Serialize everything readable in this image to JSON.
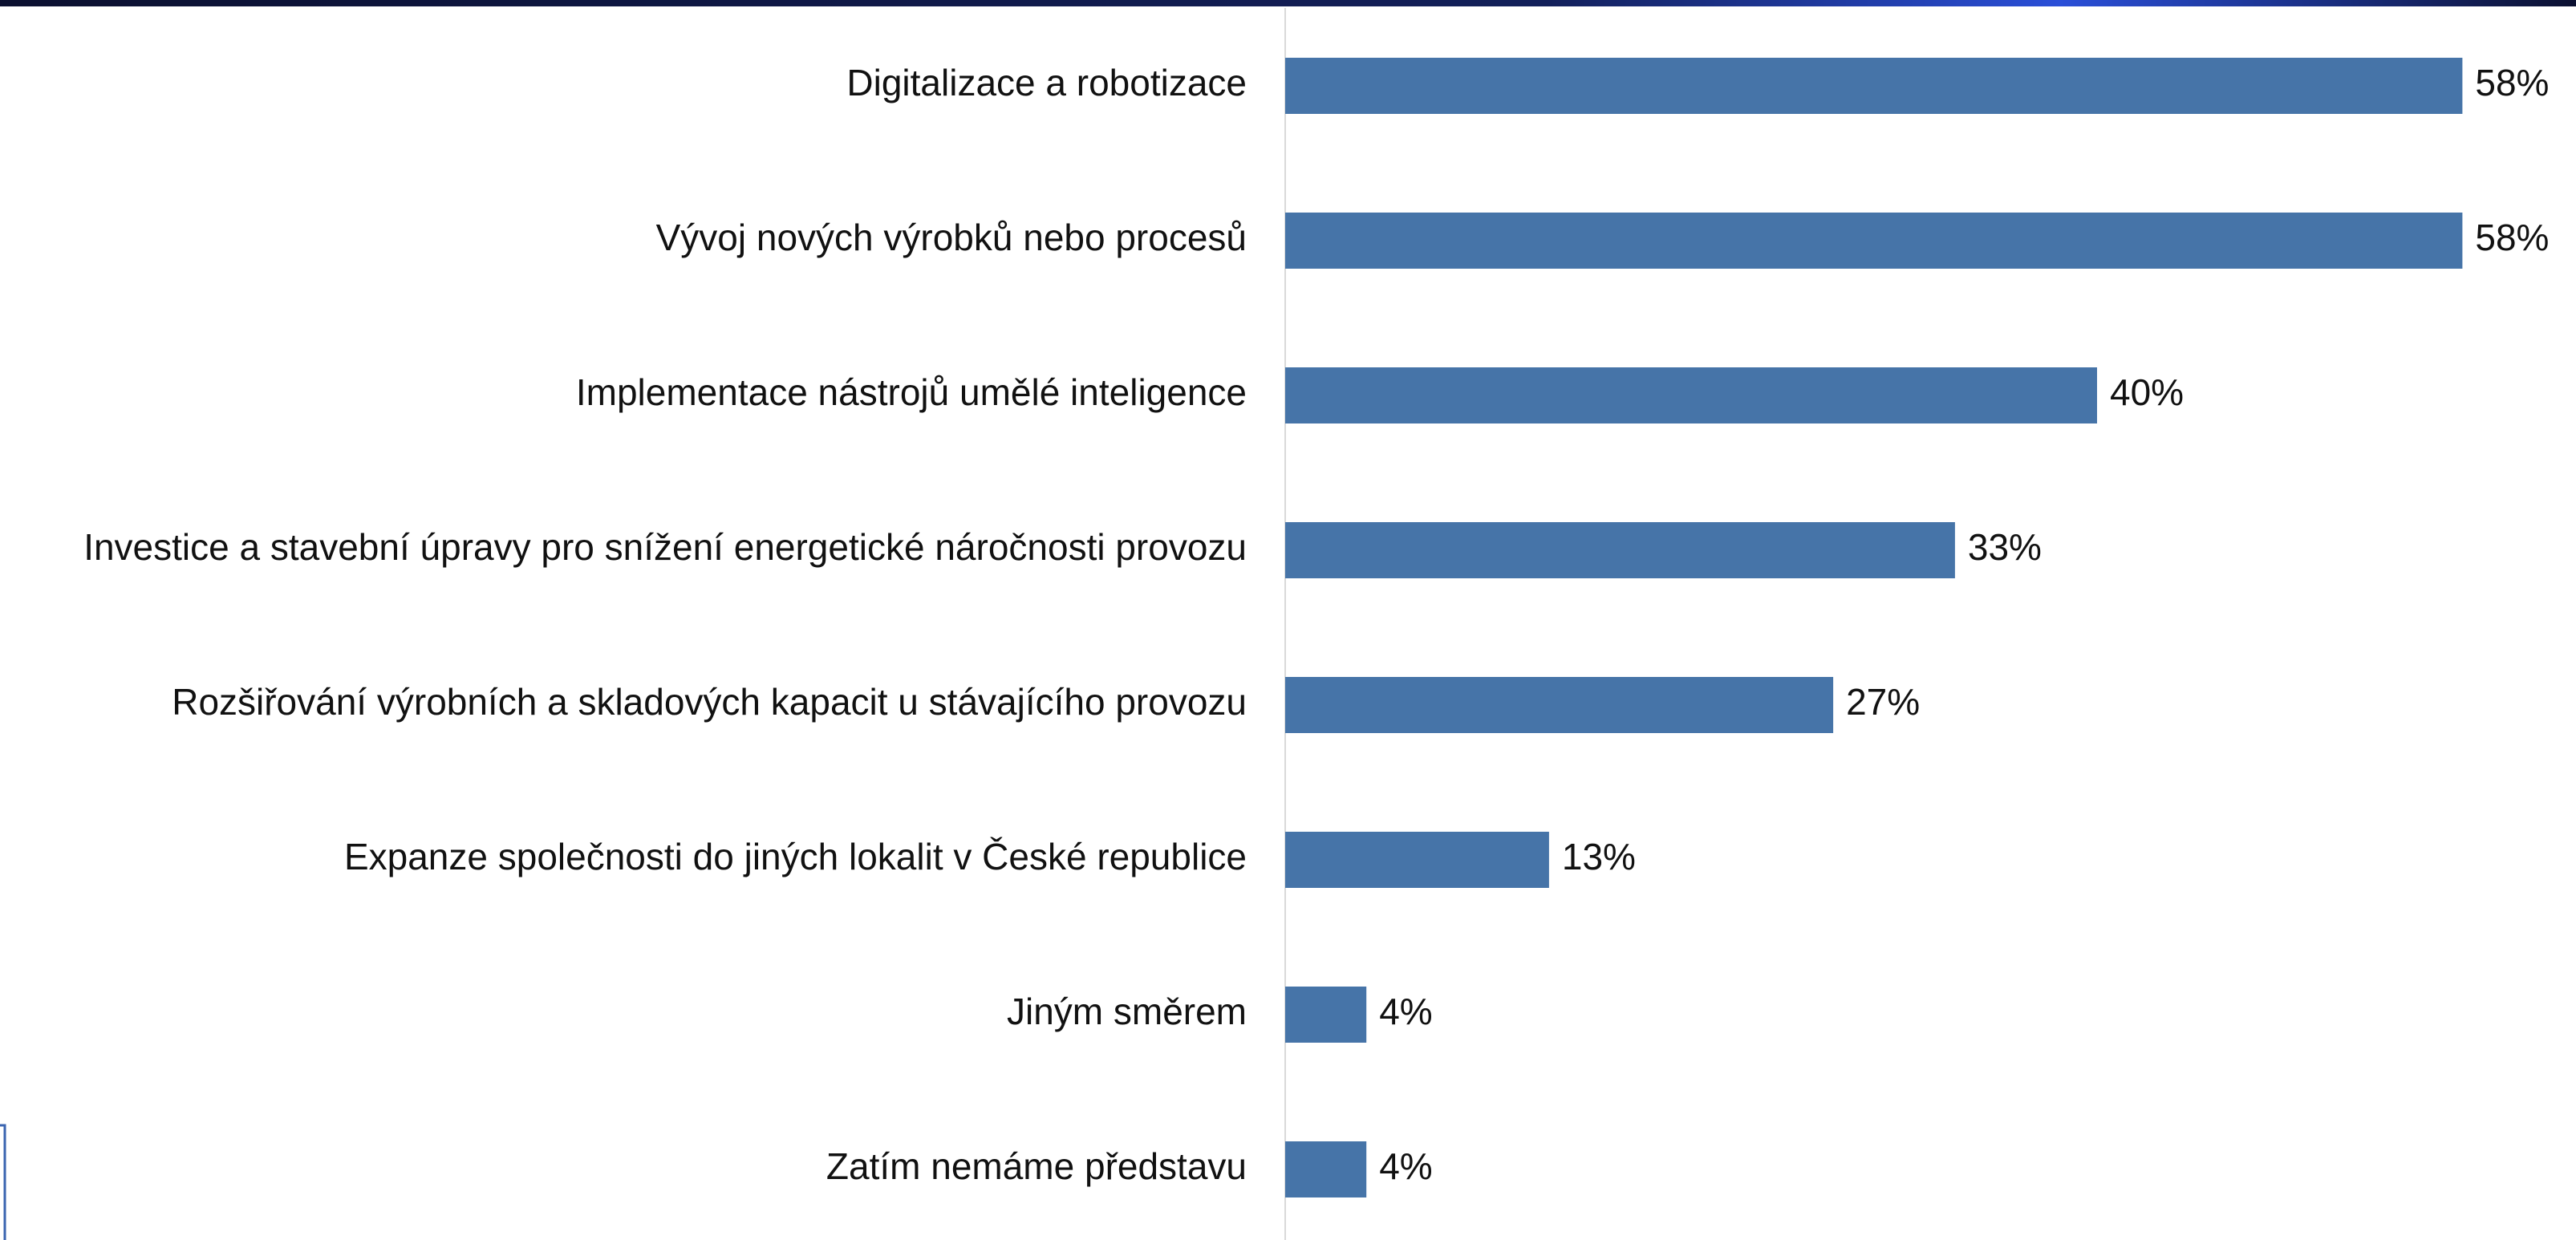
{
  "chart_data": {
    "type": "bar",
    "orientation": "horizontal",
    "categories": [
      "Digitalizace a robotizace",
      "Vývoj nových výrobků nebo procesů",
      "Implementace nástrojů umělé inteligence",
      "Investice a stavební úpravy pro snížení energetické náročnosti provozu",
      "Rozšiřování výrobních a skladových kapacit u stávajícího provozu",
      "Expanze společnosti do jiných lokalit v České republice",
      "Jiným směrem",
      "Zatím nemáme představu"
    ],
    "values": [
      58,
      58,
      40,
      33,
      27,
      13,
      4,
      4
    ],
    "value_labels": [
      "58%",
      "58%",
      "40%",
      "33%",
      "27%",
      "13%",
      "4%",
      "4%"
    ],
    "color": "#4674a8"
  }
}
